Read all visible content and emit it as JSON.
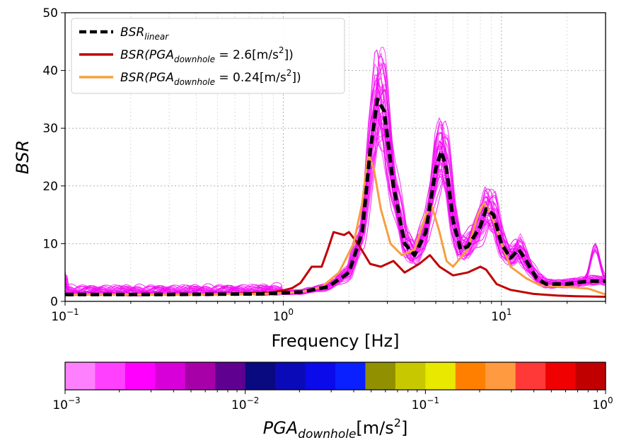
{
  "chart_data": [
    {
      "type": "line",
      "xscale": "log",
      "xlim": [
        0.1,
        30
      ],
      "ylim": [
        0,
        50
      ],
      "xlabel": "Frequency [Hz]",
      "ylabel": "BSR",
      "grid": true,
      "legend_placement": "top-left",
      "x_tick_labels": [
        {
          "base": "10",
          "exp": "−1",
          "value": 0.1
        },
        {
          "base": "10",
          "exp": "0",
          "value": 1
        },
        {
          "base": "10",
          "exp": "1",
          "value": 10
        }
      ],
      "y_tick_labels": [
        "0",
        "10",
        "20",
        "30",
        "40",
        "50"
      ],
      "y_ticks": [
        0,
        10,
        20,
        30,
        40,
        50
      ],
      "legend": [
        {
          "main": "BSR",
          "sub": "linear",
          "after": "",
          "color": "#000000",
          "dashed": true,
          "series": 0
        },
        {
          "main": "BSR(PGA",
          "sub": "downhole",
          "after": " = 2.6[m/s",
          "sup": "2",
          "tail": "])",
          "color": "#c00000",
          "dashed": false,
          "series": 1
        },
        {
          "main": "BSR(PGA",
          "sub": "downhole",
          "after": " = 0.24[m/s",
          "sup": "2",
          "tail": "])",
          "color": "#f5a040",
          "dashed": false,
          "series": 2
        }
      ],
      "series": [
        {
          "color": "#000000",
          "dashed": true,
          "width": 5,
          "x": [
            0.1,
            0.3,
            0.8,
            1.2,
            1.6,
            2.0,
            2.3,
            2.5,
            2.7,
            2.9,
            3.2,
            3.6,
            4.0,
            4.5,
            5.0,
            5.3,
            5.6,
            6.0,
            6.5,
            7.0,
            8.0,
            8.5,
            9.2,
            10.0,
            11.0,
            12.0,
            13.0,
            14.5,
            16.0,
            20.0,
            25.0,
            30.0
          ],
          "y": [
            1.2,
            1.2,
            1.3,
            1.6,
            2.5,
            5.0,
            12.0,
            26.0,
            35.0,
            33.0,
            20.0,
            10.0,
            8.0,
            12.0,
            23.0,
            26.0,
            23.0,
            14.0,
            9.0,
            9.5,
            13.0,
            16.0,
            15.0,
            10.0,
            7.5,
            9.0,
            7.0,
            4.0,
            3.0,
            3.0,
            3.5,
            3.5
          ]
        },
        {
          "color": "#c00000",
          "dashed": false,
          "width": 3,
          "x": [
            0.1,
            0.3,
            0.6,
            0.9,
            1.0,
            1.1,
            1.2,
            1.35,
            1.5,
            1.6,
            1.7,
            1.9,
            2.0,
            2.2,
            2.5,
            2.8,
            3.2,
            3.6,
            4.2,
            4.7,
            5.2,
            6.0,
            7.0,
            8.0,
            8.5,
            9.5,
            11.0,
            14.0,
            18.0,
            22.0,
            30.0
          ],
          "y": [
            1.2,
            1.2,
            1.3,
            1.6,
            1.9,
            2.3,
            3.2,
            6.0,
            6.0,
            9.0,
            12.0,
            11.5,
            12.0,
            10.0,
            6.5,
            6.0,
            7.0,
            5.0,
            6.5,
            8.0,
            6.0,
            4.5,
            5.0,
            6.0,
            5.5,
            3.0,
            2.0,
            1.3,
            1.0,
            0.9,
            0.8
          ]
        },
        {
          "color": "#f5a040",
          "dashed": false,
          "width": 3,
          "x": [
            0.1,
            0.3,
            0.8,
            1.2,
            1.5,
            1.8,
            2.1,
            2.3,
            2.45,
            2.6,
            2.8,
            3.1,
            3.5,
            4.0,
            4.5,
            4.8,
            5.2,
            5.6,
            6.0,
            7.0,
            7.8,
            8.3,
            9.0,
            10.0,
            11.0,
            13.0,
            15.0,
            20.0,
            25.0,
            30.0
          ],
          "y": [
            1.2,
            1.2,
            1.3,
            1.6,
            2.5,
            5.0,
            10.0,
            17.0,
            25.5,
            23.0,
            16.0,
            10.0,
            8.0,
            9.0,
            15.0,
            16.5,
            12.0,
            7.0,
            6.0,
            9.0,
            15.0,
            17.0,
            15.0,
            10.0,
            6.0,
            4.0,
            2.8,
            2.5,
            2.2,
            1.2
          ]
        }
      ]
    },
    {
      "type": "colorbar",
      "scale": "log",
      "range": [
        0.001,
        1
      ],
      "label": {
        "main": "PGA",
        "sub": "downhole",
        "after": "[m/s",
        "sup": "2",
        "tail": "]"
      },
      "tick_labels": [
        {
          "base": "10",
          "exp": "−3",
          "value": 0.001
        },
        {
          "base": "10",
          "exp": "−2",
          "value": 0.01
        },
        {
          "base": "10",
          "exp": "−1",
          "value": 0.1
        },
        {
          "base": "10",
          "exp": "0",
          "value": 1
        }
      ],
      "colors": [
        "#ff80ff",
        "#ff40ff",
        "#ff00ff",
        "#d800d8",
        "#a800a8",
        "#600090",
        "#0a0a80",
        "#0a0ab8",
        "#0a0aea",
        "#0a20ff",
        "#909000",
        "#c8c800",
        "#e8e800",
        "#ff8000",
        "#ff9a40",
        "#ff3838",
        "#f00000",
        "#c00000"
      ],
      "magenta_curves_note": ""
    }
  ]
}
